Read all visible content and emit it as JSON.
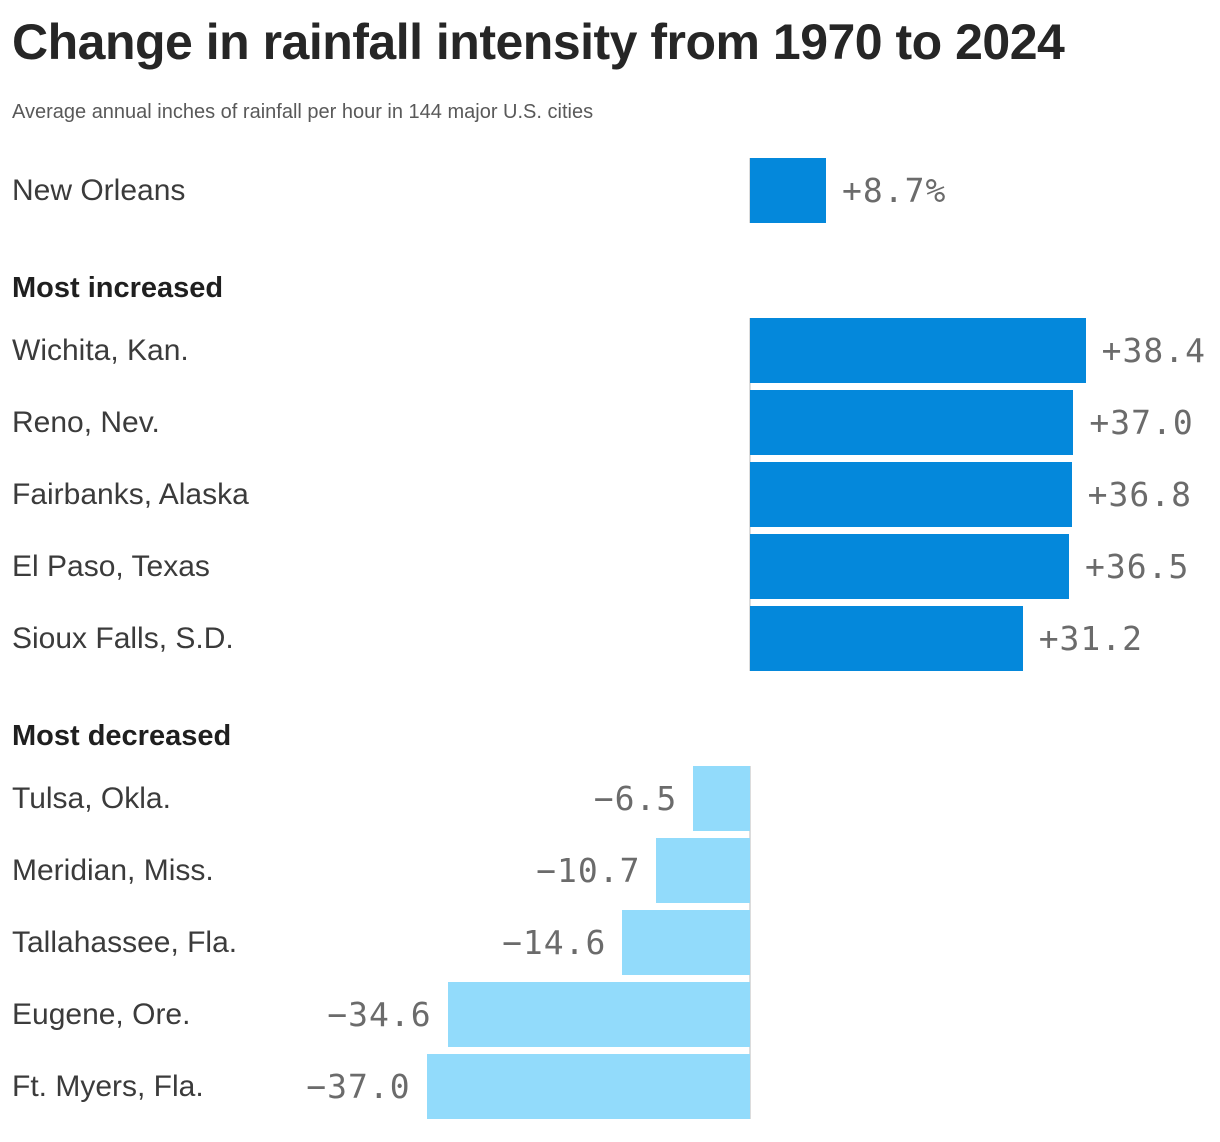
{
  "chart": {
    "title": "Change in rainfall intensity from 1970 to 2024",
    "subtitle": "Average annual inches of rainfall per hour in 144 major U.S. cities"
  },
  "chart_data": {
    "type": "bar",
    "orientation": "horizontal",
    "unit": "percent change",
    "baseline": 0,
    "xlim": [
      -38.5,
      38.5
    ],
    "grid": false,
    "legend": null,
    "colors": {
      "positive_bar": "#0488DB",
      "negative_bar": "#92DBFB",
      "value_text": "#6b6b6b",
      "zero_line": "#dcdcdc"
    },
    "sections": [
      {
        "id": "highlight",
        "heading": null,
        "rows": [
          {
            "city": "New Orleans",
            "value": 8.7,
            "value_label": "+8.7%"
          }
        ]
      },
      {
        "id": "increased",
        "heading": "Most increased",
        "rows": [
          {
            "city": "Wichita, Kan.",
            "value": 38.4,
            "value_label": "+38.4"
          },
          {
            "city": "Reno, Nev.",
            "value": 37.0,
            "value_label": "+37.0"
          },
          {
            "city": "Fairbanks, Alaska",
            "value": 36.8,
            "value_label": "+36.8"
          },
          {
            "city": "El Paso, Texas",
            "value": 36.5,
            "value_label": "+36.5"
          },
          {
            "city": "Sioux Falls, S.D.",
            "value": 31.2,
            "value_label": "+31.2"
          }
        ]
      },
      {
        "id": "decreased",
        "heading": "Most decreased",
        "rows": [
          {
            "city": "Tulsa, Okla.",
            "value": -6.5,
            "value_label": "−6.5"
          },
          {
            "city": "Meridian, Miss.",
            "value": -10.7,
            "value_label": "−10.7"
          },
          {
            "city": "Tallahassee, Fla.",
            "value": -14.6,
            "value_label": "−14.6"
          },
          {
            "city": "Eugene, Ore.",
            "value": -34.6,
            "value_label": "−34.6"
          },
          {
            "city": "Ft. Myers, Fla.",
            "value": -37.0,
            "value_label": "−37.0"
          }
        ]
      }
    ]
  }
}
